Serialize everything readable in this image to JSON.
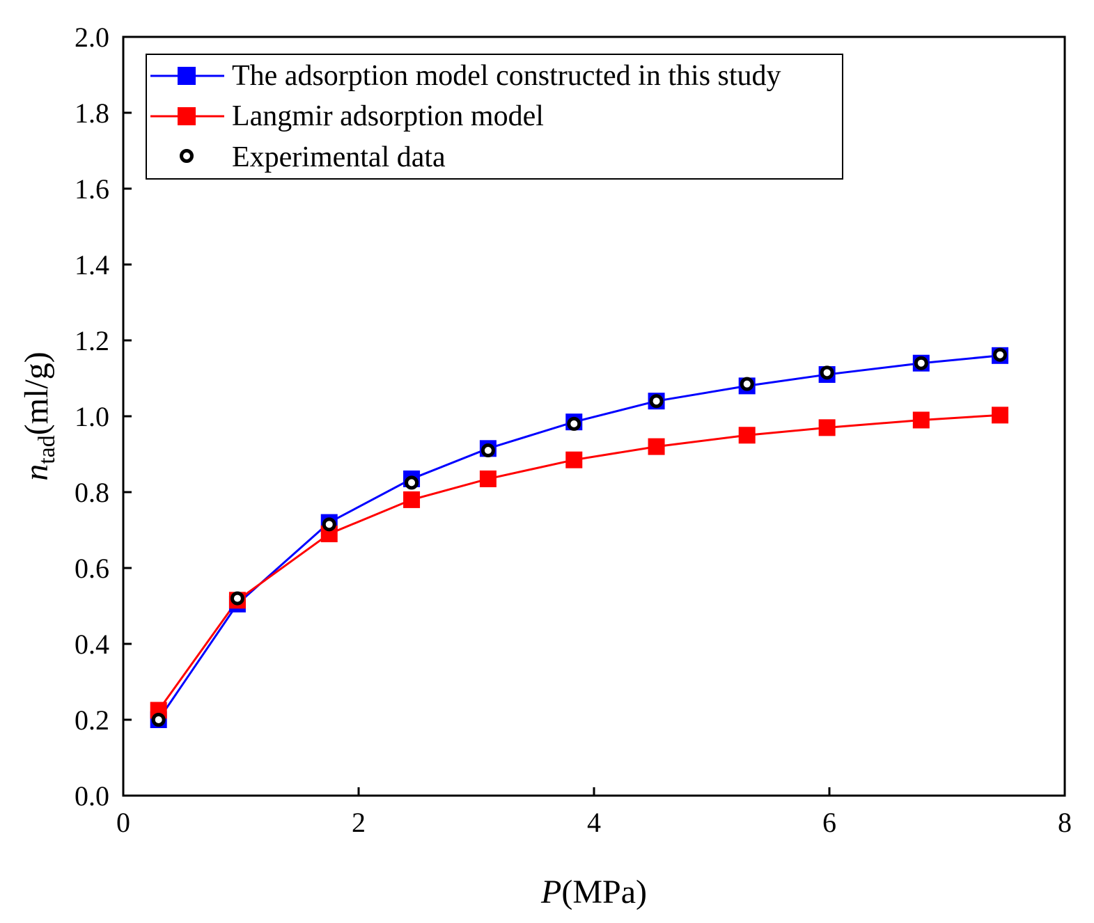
{
  "chart_data": {
    "type": "line",
    "title": "",
    "xlabel": {
      "italic": "P",
      "rest": "(MPa)"
    },
    "ylabel": {
      "italic": "n",
      "subscript": "tad",
      "rest": "(ml/g)"
    },
    "xlim": [
      0,
      8
    ],
    "ylim": [
      0,
      2.0
    ],
    "xticks": [
      0,
      2,
      4,
      6,
      8
    ],
    "yticks": [
      "0.0",
      "0.2",
      "0.4",
      "0.6",
      "0.8",
      "1.0",
      "1.2",
      "1.4",
      "1.6",
      "1.8",
      "2.0"
    ],
    "x": [
      0.3,
      0.97,
      1.75,
      2.45,
      3.1,
      3.83,
      4.53,
      5.3,
      5.98,
      6.78,
      7.45
    ],
    "series": [
      {
        "name": "The adsorption model constructed in this study",
        "color": "#0000ff",
        "marker": "square",
        "values": [
          0.2,
          0.505,
          0.72,
          0.835,
          0.915,
          0.985,
          1.04,
          1.08,
          1.11,
          1.14,
          1.16
        ]
      },
      {
        "name": "Langmir adsorption model",
        "color": "#ff0000",
        "marker": "square",
        "values": [
          0.225,
          0.515,
          0.69,
          0.78,
          0.835,
          0.885,
          0.92,
          0.95,
          0.97,
          0.99,
          1.003
        ]
      },
      {
        "name": "Experimental data",
        "color": "#000000",
        "marker": "open-circle",
        "values": [
          0.2,
          0.52,
          0.715,
          0.825,
          0.91,
          0.98,
          1.04,
          1.085,
          1.115,
          1.14,
          1.162
        ]
      }
    ],
    "legend": "top-left",
    "grid": false
  }
}
